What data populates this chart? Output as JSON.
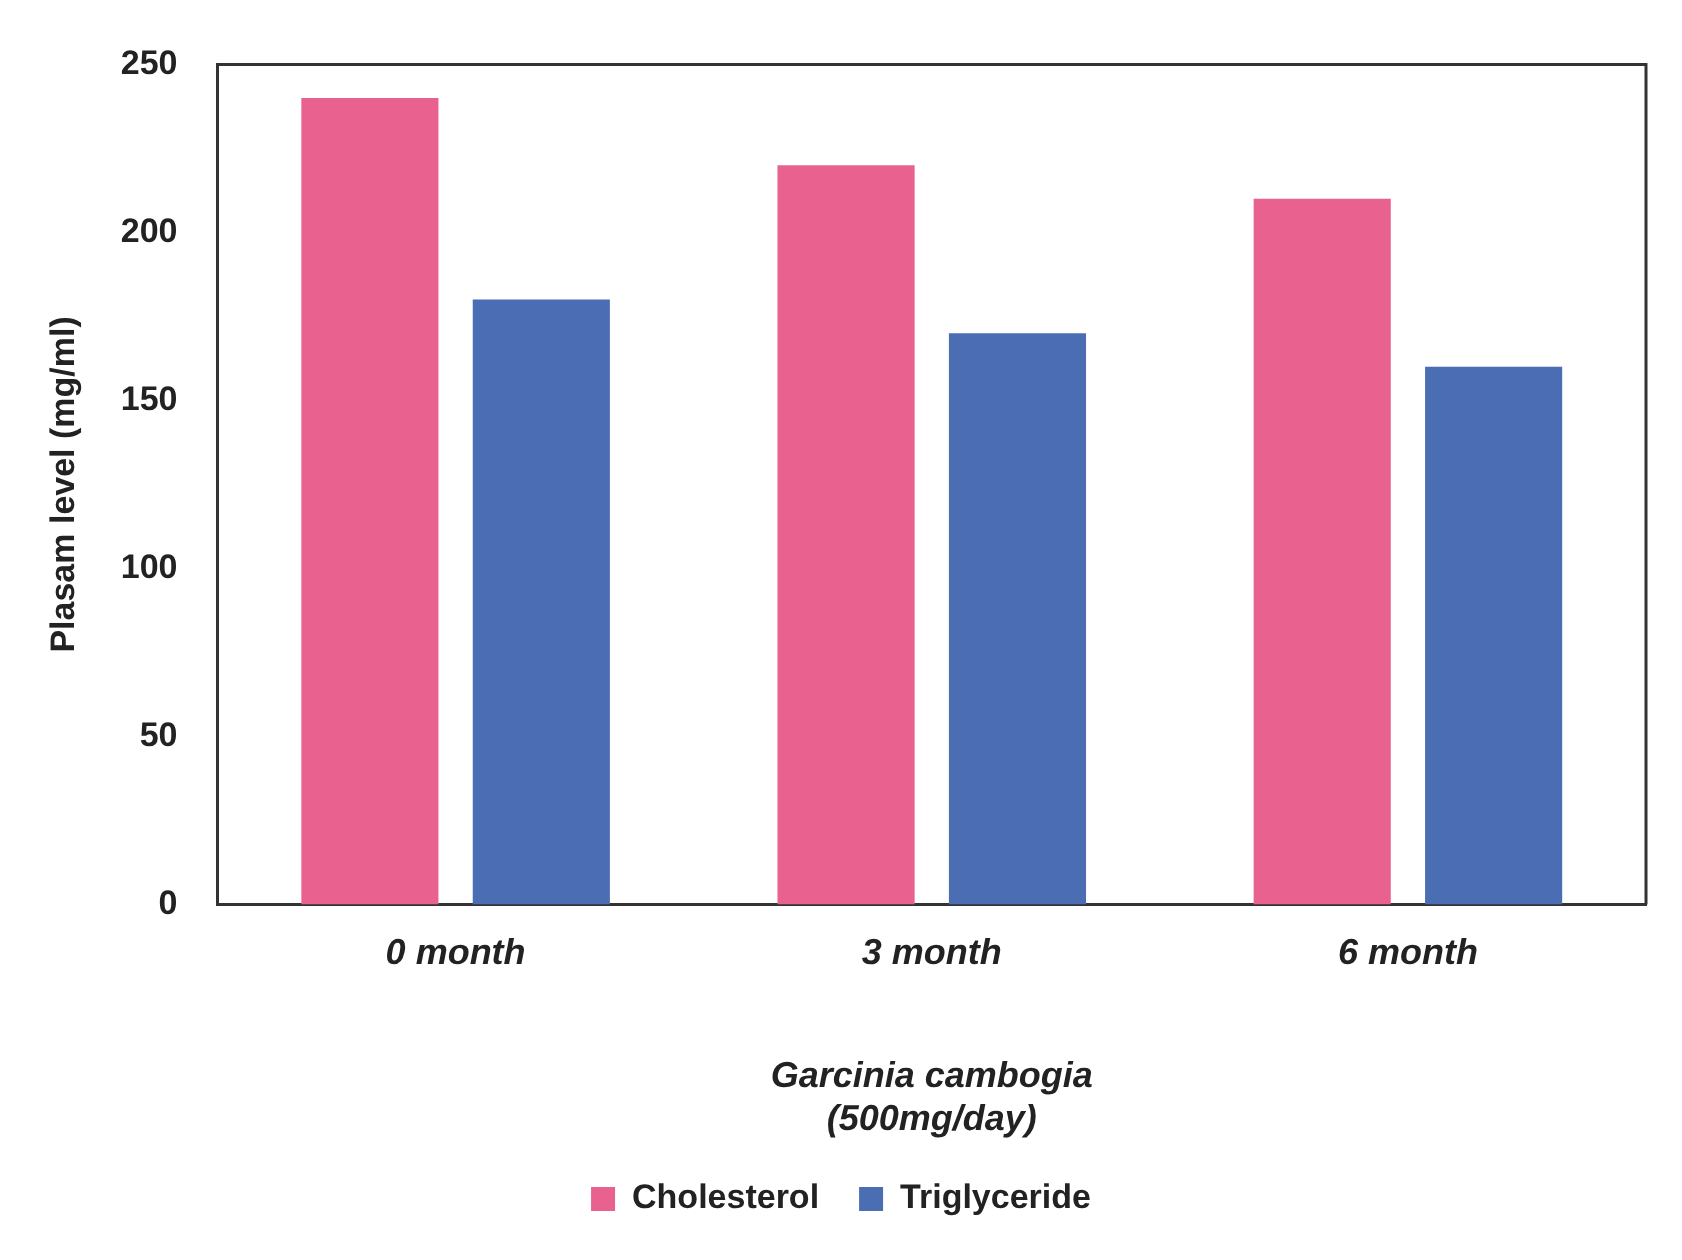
{
  "chart_data": {
    "type": "bar",
    "categories": [
      "0 month",
      "3 month",
      "6 month"
    ],
    "series": [
      {
        "name": "Cholesterol",
        "color": "#e9628f",
        "values": [
          240,
          220,
          210
        ]
      },
      {
        "name": "Triglyceride",
        "color": "#4a6db3",
        "values": [
          180,
          170,
          160
        ]
      }
    ],
    "xlabel": "Garcinia cambogia\n(500mg/day)",
    "ylabel": "Plasam level (mg/ml)",
    "ylim": [
      0,
      250
    ],
    "yticks": [
      0,
      50,
      100,
      150,
      200,
      250
    ],
    "grid": false,
    "legend": "bottom"
  }
}
